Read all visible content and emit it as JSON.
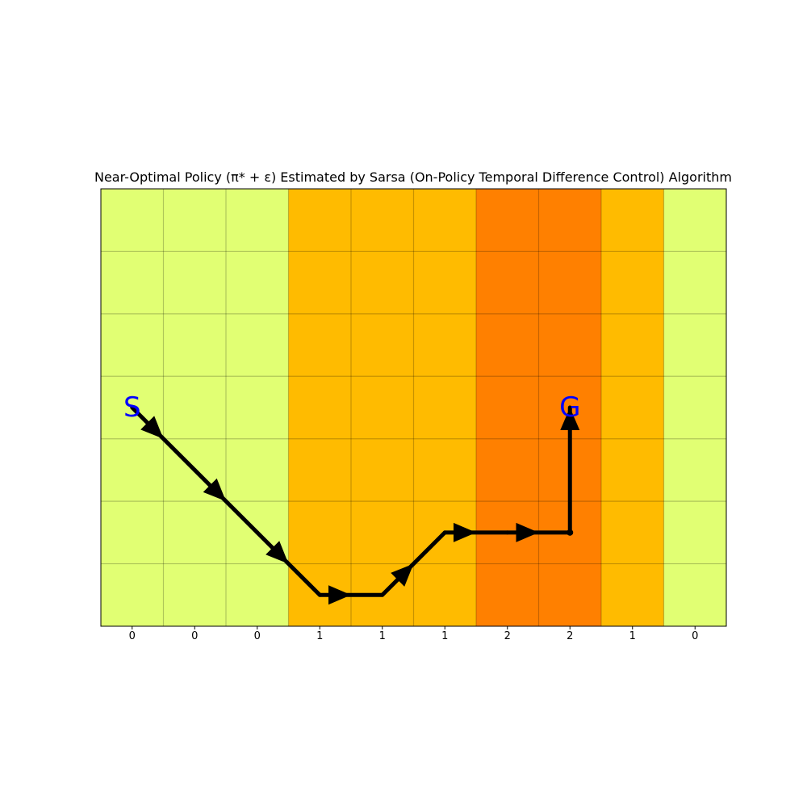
{
  "chart_data": {
    "type": "heatmap",
    "title": "Near-Optimal Policy (π* + ε) Estimated by Sarsa (On-Policy Temporal Difference Control) Algorithm",
    "xlabel": "",
    "ylabel": "",
    "columns": 10,
    "rows": 7,
    "x_tick_labels": [
      "0",
      "0",
      "0",
      "1",
      "1",
      "1",
      "2",
      "2",
      "1",
      "0"
    ],
    "column_values": [
      0,
      0,
      0,
      1,
      1,
      1,
      2,
      2,
      1,
      0
    ],
    "color_scale": {
      "0": "#e1ff73",
      "1": "#ffbb00",
      "2": "#ff8000"
    },
    "grid": true,
    "start": {
      "label": "S",
      "col": 0,
      "row": 3
    },
    "goal": {
      "label": "G",
      "col": 7,
      "row": 3
    },
    "path": [
      {
        "col": 0,
        "row": 3
      },
      {
        "col": 1,
        "row": 4
      },
      {
        "col": 2,
        "row": 5
      },
      {
        "col": 3,
        "row": 6
      },
      {
        "col": 4,
        "row": 6
      },
      {
        "col": 5,
        "row": 5
      },
      {
        "col": 6,
        "row": 5
      },
      {
        "col": 7,
        "row": 5
      },
      {
        "col": 7,
        "row": 3
      }
    ],
    "marker_color": "#0000ff",
    "arrow_color": "#000000"
  }
}
